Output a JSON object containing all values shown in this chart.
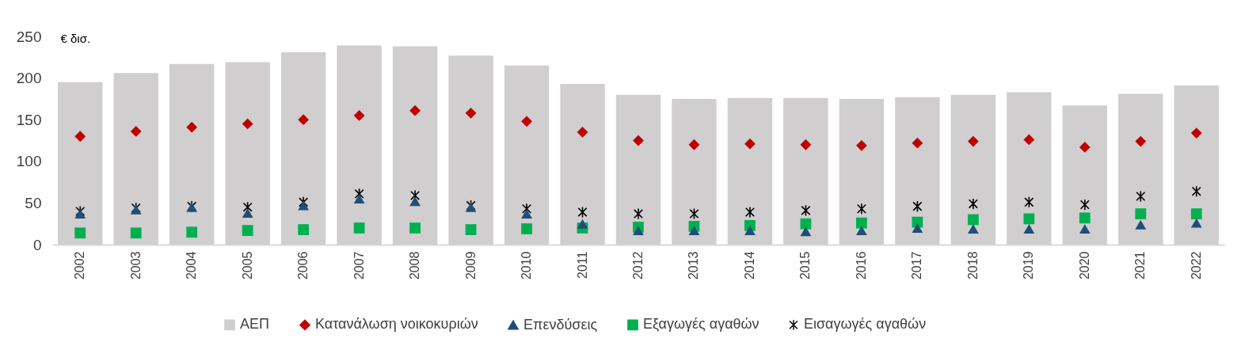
{
  "chart_data": {
    "type": "bar",
    "ylabel": "€ δισ.",
    "categories": [
      "2002",
      "2003",
      "2004",
      "2005",
      "2006",
      "2007",
      "2008",
      "2009",
      "2010",
      "2011",
      "2012",
      "2013",
      "2014",
      "2015",
      "2016",
      "2017",
      "2018",
      "2019",
      "2020",
      "2021",
      "2022"
    ],
    "series": [
      {
        "name": "ΑΕΠ",
        "color": "#d0cece",
        "values": [
          195,
          206,
          217,
          219,
          231,
          239,
          238,
          227,
          215,
          193,
          180,
          175,
          176,
          176,
          175,
          177,
          180,
          183,
          167,
          181,
          191
        ]
      },
      {
        "name": "Κατανάλωση νοικοκυριών",
        "type": "scatter",
        "marker": "diamond",
        "color": "#c00000",
        "values": [
          130,
          136,
          141,
          145,
          150,
          155,
          161,
          158,
          148,
          135,
          125,
          120,
          121,
          120,
          119,
          122,
          124,
          126,
          117,
          124,
          134
        ]
      },
      {
        "name": "Επενδύσεις",
        "type": "scatter",
        "marker": "triangle",
        "color": "#1f4e79",
        "values": [
          37,
          42,
          45,
          38,
          47,
          55,
          52,
          45,
          37,
          25,
          17,
          17,
          17,
          16,
          17,
          20,
          19,
          19,
          19,
          24,
          26
        ]
      },
      {
        "name": "Εξαγωγές αγαθών",
        "type": "scatter",
        "marker": "square",
        "color": "#00b050",
        "values": [
          14,
          14,
          15,
          17,
          18,
          20,
          20,
          18,
          19,
          20,
          21,
          22,
          23,
          25,
          26,
          27,
          30,
          31,
          32,
          37,
          37
        ]
      },
      {
        "name": "Εισαγωγές αγαθών",
        "type": "scatter",
        "marker": "cross",
        "color": "#000000",
        "values": [
          40,
          44,
          46,
          45,
          51,
          61,
          59,
          47,
          43,
          39,
          37,
          37,
          39,
          41,
          43,
          46,
          49,
          51,
          48,
          58,
          64
        ]
      }
    ],
    "ylim": [
      0,
      250
    ],
    "yticks": [
      0,
      50,
      100,
      150,
      200,
      250
    ],
    "grid": false,
    "legend": "bottom"
  }
}
